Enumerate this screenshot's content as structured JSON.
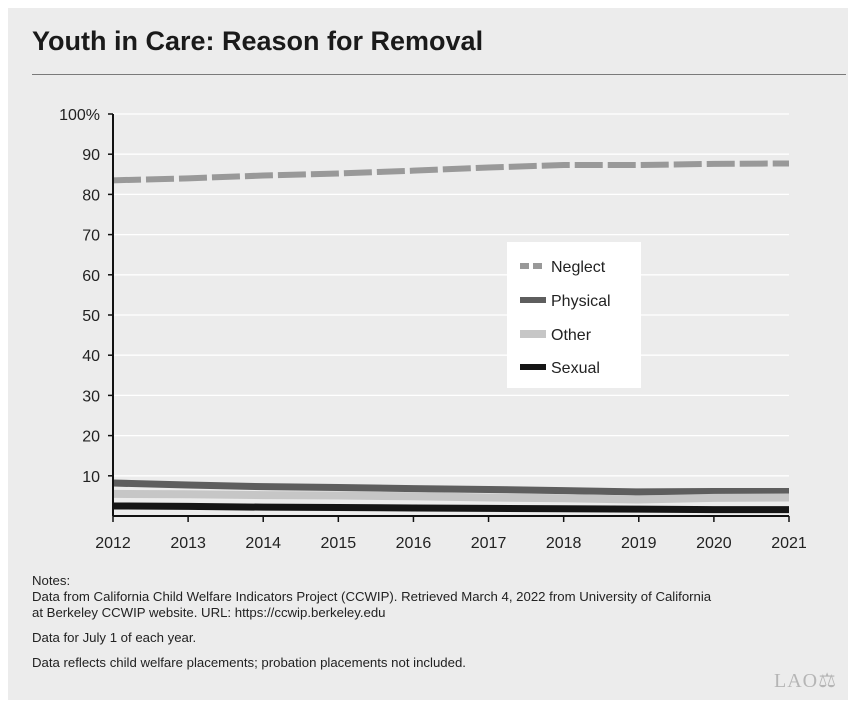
{
  "header": {
    "title": "Youth in Care: Reason for Removal"
  },
  "chart_data": {
    "type": "line",
    "title": "Youth in Care: Reason for Removal",
    "xlabel": "",
    "ylabel": "",
    "x": [
      2012,
      2013,
      2014,
      2015,
      2016,
      2017,
      2018,
      2019,
      2020,
      2021
    ],
    "x_tick_labels": [
      "2012",
      "2013",
      "2014",
      "2015",
      "2016",
      "2017",
      "2018",
      "2019",
      "2020",
      "2021"
    ],
    "ylim": [
      0,
      100
    ],
    "y_ticks": [
      10,
      20,
      30,
      40,
      50,
      60,
      70,
      80,
      90,
      100
    ],
    "y_tick_labels": [
      "10",
      "20",
      "30",
      "40",
      "50",
      "60",
      "70",
      "80",
      "90",
      "100%"
    ],
    "grid": "horizontal",
    "legend_position": "center-right",
    "series": [
      {
        "name": "Neglect",
        "style": "dashed",
        "color": "#999999",
        "values": [
          83.5,
          84,
          84.7,
          85.2,
          85.9,
          86.7,
          87.3,
          87.3,
          87.6,
          87.7
        ]
      },
      {
        "name": "Physical",
        "style": "solid",
        "color": "#5e5e5e",
        "values": [
          8.2,
          7.7,
          7.3,
          7.1,
          6.8,
          6.6,
          6.3,
          6.0,
          6.1,
          6.1
        ]
      },
      {
        "name": "Other",
        "style": "solid",
        "color": "#c6c6c6",
        "values": [
          5.5,
          5.4,
          5.2,
          5.1,
          4.9,
          4.6,
          4.4,
          4.1,
          4.5,
          4.6
        ]
      },
      {
        "name": "Sexual",
        "style": "solid",
        "color": "#151515",
        "values": [
          2.5,
          2.4,
          2.2,
          2.1,
          2.0,
          1.9,
          1.8,
          1.7,
          1.6,
          1.6
        ]
      }
    ]
  },
  "notes": {
    "heading": "Notes:",
    "line1": "Data from California Child Welfare Indicators Project (CCWIP). Retrieved March 4, 2022 from University of California",
    "line2": "at Berkeley CCWIP website. URL: https://ccwip.berkeley.edu",
    "line3": "Data for July 1 of each year.",
    "line4": "Data reflects child welfare placements; probation placements not included."
  },
  "logo": {
    "text": "LAO"
  }
}
